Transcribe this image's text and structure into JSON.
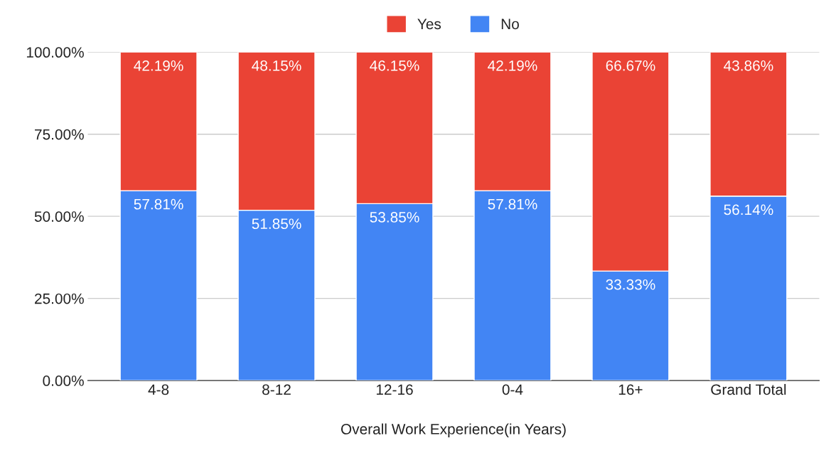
{
  "chart_data": {
    "type": "bar",
    "stacked": true,
    "xlabel": "Overall Work Experience(in Years)",
    "categories": [
      "4-8",
      "8-12",
      "12-16",
      "0-4",
      "16+",
      "Grand Total"
    ],
    "series": [
      {
        "name": "No",
        "color": "#4285f4",
        "values": [
          57.81,
          51.85,
          53.85,
          57.81,
          33.33,
          56.14
        ],
        "value_labels": [
          "57.81%",
          "51.85%",
          "53.85%",
          "57.81%",
          "33.33%",
          "56.14%"
        ]
      },
      {
        "name": "Yes",
        "color": "#ea4335",
        "values": [
          42.19,
          48.15,
          46.15,
          42.19,
          66.67,
          43.86
        ],
        "value_labels": [
          "42.19%",
          "48.15%",
          "46.15%",
          "42.19%",
          "66.67%",
          "43.86%"
        ]
      }
    ],
    "ylim": [
      0,
      100
    ],
    "yticks": [
      {
        "value": 0,
        "label": "0.00%"
      },
      {
        "value": 25,
        "label": "25.00%"
      },
      {
        "value": 50,
        "label": "50.00%"
      },
      {
        "value": 75,
        "label": "75.00%"
      },
      {
        "value": 100,
        "label": "100.00%"
      }
    ],
    "grid": "y",
    "legend": "top"
  }
}
